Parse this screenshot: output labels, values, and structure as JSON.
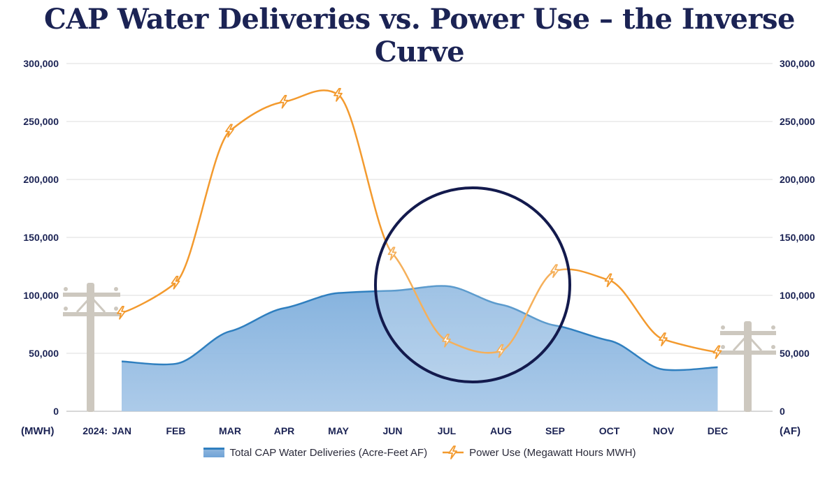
{
  "title": "CAP Water Deliveries vs. Power Use – the Inverse Curve",
  "chart_data": {
    "type": "area+line",
    "categories": [
      "JAN",
      "FEB",
      "MAR",
      "APR",
      "MAY",
      "JUN",
      "JUL",
      "AUG",
      "SEP",
      "OCT",
      "NOV",
      "DEC"
    ],
    "year_prefix": "2024:",
    "left_axis_label": "(MWH)",
    "right_axis_label": "(AF)",
    "ylim": [
      0,
      300000
    ],
    "yticks": [
      "0",
      "50,000",
      "100,000",
      "150,000",
      "200,000",
      "250,000",
      "300,000"
    ],
    "ytick_values": [
      0,
      50000,
      100000,
      150000,
      200000,
      250000,
      300000
    ],
    "series": [
      {
        "name": "Total CAP Water Deliveries (Acre-Feet AF)",
        "type": "area",
        "axis": "right",
        "color": "#2f7fbf",
        "values": [
          43000,
          41000,
          69000,
          89000,
          102000,
          104000,
          108000,
          92000,
          74000,
          61000,
          36000,
          38000
        ]
      },
      {
        "name": "Power Use (Megawatt Hours MWH)",
        "type": "line",
        "axis": "left",
        "color": "#f39a2e",
        "marker": "lightning-bolt",
        "values": [
          85000,
          111000,
          242000,
          267000,
          273000,
          136000,
          61000,
          52000,
          121000,
          113000,
          62000,
          51000
        ]
      }
    ],
    "annotation": {
      "type": "circle",
      "highlight": "JUL-AUG inverse",
      "color": "#131a4d"
    }
  },
  "legend": {
    "water_label": "Total CAP Water Deliveries (Acre-Feet AF)",
    "power_label": "Power Use (Megawatt Hours MWH)"
  },
  "colors": {
    "title": "#1b2354",
    "water_fill": "#8cb4dd",
    "water_line": "#2f7fbf",
    "power_line": "#f39a2e",
    "grid": "#d9d9d9",
    "pole": "#cdc8bf"
  }
}
